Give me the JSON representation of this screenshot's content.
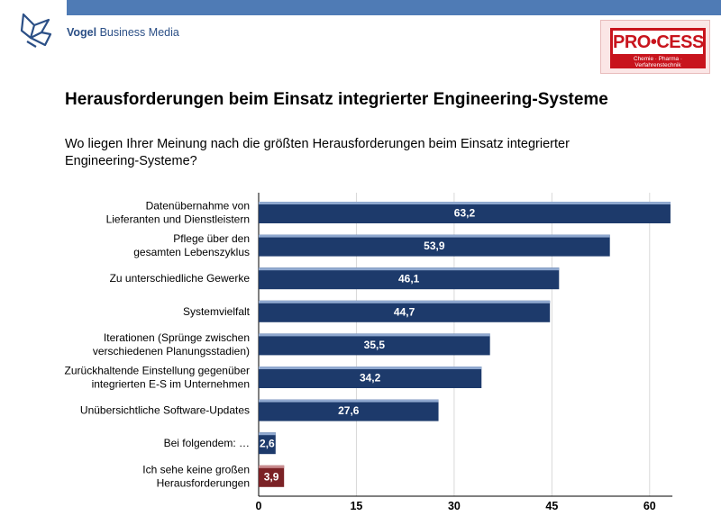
{
  "header": {
    "brand_bold": "Vogel",
    "brand_rest": " Business Media",
    "badge_word": "PRO•CESS",
    "badge_tagline": "Chemie · Pharma · Verfahrenstechnik",
    "title": "Herausforderungen beim Einsatz integrierter Engineering-Systeme",
    "question": "Wo liegen Ihrer Meinung nach die größten Herausforderungen beim Einsatz integrierter Engineering-Systeme?"
  },
  "chart_data": {
    "type": "bar",
    "orientation": "horizontal",
    "title": "Herausforderungen beim Einsatz integrierter Engineering-Systeme",
    "xlabel": "",
    "ylabel": "",
    "xlim": [
      0,
      63.5
    ],
    "ticks": [
      0,
      15,
      30,
      45,
      60
    ],
    "grid": true,
    "categories": [
      [
        "Datenübernahme von",
        "Lieferanten und Dienstleistern"
      ],
      [
        "Pflege über den",
        "gesamten Lebenszyklus"
      ],
      [
        "Zu unterschiedliche Gewerke"
      ],
      [
        "Systemvielfalt"
      ],
      [
        "Iterationen (Sprünge zwischen",
        "verschiedenen Planungsstadien)"
      ],
      [
        "Zurückhaltende Einstellung gegenüber",
        "integrierten E-S im Unternehmen"
      ],
      [
        "Unübersichtliche Software-Updates"
      ],
      [
        "Bei folgendem: …"
      ],
      [
        "Ich sehe keine großen",
        "Herausforderungen"
      ]
    ],
    "values": [
      63.2,
      53.9,
      46.1,
      44.7,
      35.5,
      34.2,
      27.6,
      2.6,
      3.9
    ],
    "value_labels": [
      "63,2",
      "53,9",
      "46,1",
      "44,7",
      "35,5",
      "34,2",
      "27,6",
      "2,6",
      "3,9"
    ],
    "tick_labels": [
      "0",
      "15",
      "30",
      "45",
      "60"
    ],
    "colors": {
      "bar": "#1d3a6b",
      "bar_highlight": "#8fa8cf",
      "negative": "#7b2226",
      "negative_highlight": "#c98c8f",
      "grid": "#d9d9d9"
    },
    "special_color_index": [
      8
    ]
  }
}
